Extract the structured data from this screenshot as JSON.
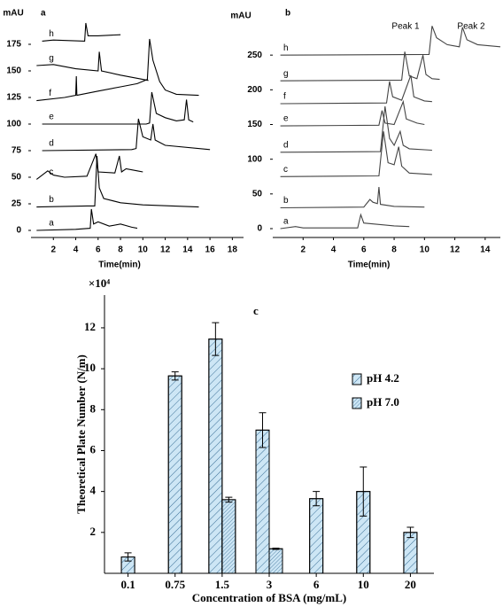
{
  "chart_data": [
    {
      "type": "line",
      "panel_label": "a",
      "y_label": "mAU",
      "x_label": "Time(min)",
      "color": "#000000",
      "xlim": [
        0,
        19
      ],
      "ylim": [
        0,
        205
      ],
      "xticks": [
        2,
        4,
        6,
        8,
        10,
        12,
        14,
        16,
        18
      ],
      "yticks": [
        0,
        25,
        50,
        75,
        100,
        125,
        150,
        175
      ],
      "series": [
        {
          "name": "a",
          "x": [
            0.5,
            4,
            5.3,
            5.4,
            5.6,
            6,
            7,
            8,
            9,
            9.5
          ],
          "values": [
            0,
            1,
            2,
            20,
            6,
            8,
            4,
            6,
            3,
            2
          ]
        },
        {
          "name": "b",
          "x": [
            0.5,
            5,
            5.7,
            5.9,
            6.1,
            6.5,
            8,
            10,
            15
          ],
          "values": [
            22,
            23,
            23,
            70,
            40,
            30,
            26,
            24,
            22
          ]
        },
        {
          "name": "c",
          "x": [
            0.5,
            1.5,
            2,
            3,
            5,
            5.8,
            6,
            7.5,
            7.9,
            8.1,
            8.5,
            9.5,
            10
          ],
          "values": [
            48,
            56,
            52,
            50,
            51,
            72,
            55,
            54,
            70,
            55,
            58,
            56,
            55
          ]
        },
        {
          "name": "d",
          "x": [
            1,
            9,
            9.4,
            9.6,
            10,
            10.7,
            10.9,
            11.1,
            12,
            16
          ],
          "values": [
            75,
            76,
            77,
            105,
            88,
            85,
            100,
            85,
            80,
            76
          ]
        },
        {
          "name": "e",
          "x": [
            1,
            10.3,
            10.6,
            10.8,
            11.2,
            12,
            13,
            13.7,
            13.9,
            14.1,
            14.5
          ],
          "values": [
            100,
            100,
            101,
            130,
            110,
            106,
            103,
            104,
            123,
            104,
            102
          ]
        },
        {
          "name": "f",
          "x": [
            0.5,
            3,
            4,
            4.05,
            4.1,
            6,
            8,
            9.5,
            10.4,
            10.6,
            10.9,
            11.5,
            12,
            13,
            15
          ],
          "values": [
            122,
            125,
            127,
            145,
            127,
            131,
            135,
            138,
            142,
            180,
            160,
            140,
            132,
            128,
            127
          ]
        },
        {
          "name": "g",
          "x": [
            0.5,
            2,
            4,
            6,
            6.1,
            6.3,
            8,
            10,
            10.5
          ],
          "values": [
            155,
            156,
            152,
            150,
            168,
            150,
            146,
            142,
            141
          ]
        },
        {
          "name": "h",
          "x": [
            1,
            2,
            4.8,
            4.9,
            5.1,
            6,
            8
          ],
          "values": [
            178,
            179,
            178,
            195,
            183,
            183,
            184
          ]
        }
      ]
    },
    {
      "type": "line",
      "panel_label": "b",
      "y_label": "mAU",
      "x_label": "Time(min)",
      "color": "#444444",
      "annotations": [
        "Peak 1",
        "Peak 2"
      ],
      "xlim": [
        0,
        15
      ],
      "ylim": [
        0,
        300
      ],
      "xticks": [
        2,
        4,
        6,
        8,
        10,
        12,
        14
      ],
      "yticks": [
        0,
        50,
        100,
        150,
        200,
        250
      ],
      "series": [
        {
          "name": "a",
          "x": [
            0.5,
            1.5,
            2,
            5.6,
            5.8,
            6,
            7,
            8,
            9
          ],
          "values": [
            0,
            3,
            1,
            1,
            20,
            8,
            6,
            4,
            3
          ]
        },
        {
          "name": "b",
          "x": [
            0.5,
            6,
            6.4,
            6.6,
            6.9,
            7.0,
            7.1,
            8,
            10
          ],
          "values": [
            30,
            31,
            42,
            38,
            36,
            60,
            35,
            32,
            31
          ]
        },
        {
          "name": "c",
          "x": [
            0.5,
            7,
            7.3,
            7.6,
            8,
            8.3,
            8.5,
            9,
            10.5
          ],
          "values": [
            75,
            76,
            140,
            95,
            92,
            118,
            90,
            80,
            78
          ]
        },
        {
          "name": "d",
          "x": [
            0.5,
            7.1,
            7.4,
            7.7,
            8,
            8.4,
            8.6,
            9,
            10.5
          ],
          "values": [
            110,
            111,
            176,
            130,
            120,
            140,
            120,
            115,
            113
          ]
        },
        {
          "name": "e",
          "x": [
            0.5,
            7,
            7.2,
            7.4,
            8,
            8.6,
            8.8,
            9.5,
            10
          ],
          "values": [
            148,
            149,
            170,
            152,
            150,
            183,
            158,
            152,
            150
          ]
        },
        {
          "name": "f",
          "x": [
            0.5,
            7.5,
            7.7,
            7.9,
            8.5,
            9.1,
            9.3,
            10,
            10.5
          ],
          "values": [
            180,
            181,
            212,
            190,
            185,
            221,
            190,
            184,
            183
          ]
        },
        {
          "name": "g",
          "x": [
            0.5,
            8.5,
            8.7,
            9,
            9.5,
            9.9,
            10.1,
            10.5,
            11
          ],
          "values": [
            213,
            214,
            255,
            220,
            216,
            250,
            222,
            216,
            215
          ]
        },
        {
          "name": "h",
          "x": [
            0.5,
            10.3,
            10.5,
            10.8,
            11.5,
            12.3,
            12.5,
            12.8,
            13.5,
            15
          ],
          "values": [
            250,
            251,
            292,
            275,
            265,
            262,
            290,
            272,
            265,
            262
          ]
        }
      ]
    },
    {
      "type": "bar",
      "panel_label": "c",
      "y_scale_label": "×10⁴",
      "y_label": "Theoretical Plate Number (N/m)",
      "x_label": "Concentration of BSA (mg/mL)",
      "categories": [
        "0.1",
        "0.75",
        "1.5",
        "3",
        "6",
        "10",
        "20"
      ],
      "ylim": [
        0,
        13.6
      ],
      "yticks": [
        2,
        4,
        6,
        8,
        10,
        12
      ],
      "series": [
        {
          "name": "pH 4.2",
          "color": "#cde6f5",
          "values": [
            0.8,
            9.65,
            11.45,
            7.0,
            3.65,
            4.0,
            2.0
          ],
          "errors": [
            0.2,
            0.2,
            0.8,
            0.85,
            0.35,
            1.2,
            0.25
          ]
        },
        {
          "name": "pH 7.0",
          "color": "#cde6f5",
          "values": [
            null,
            null,
            3.6,
            1.2,
            null,
            null,
            null
          ],
          "errors": [
            null,
            null,
            0.12,
            0.03,
            null,
            null,
            null
          ]
        }
      ]
    }
  ]
}
